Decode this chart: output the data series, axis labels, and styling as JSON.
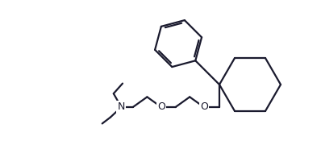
{
  "line_color": "#1a1a2e",
  "bg_color": "#ffffff",
  "line_width": 1.6,
  "fig_width": 3.98,
  "fig_height": 1.9,
  "dpi": 100,
  "atoms": {
    "N_label": "N",
    "O1_label": "O",
    "O2_label": "O"
  }
}
